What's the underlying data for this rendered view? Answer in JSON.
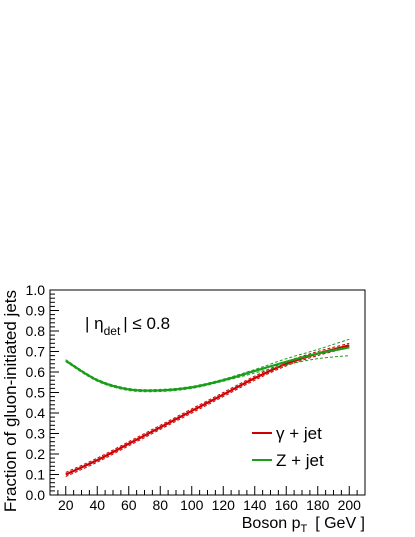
{
  "chart_data": {
    "type": "line",
    "title": "",
    "xlabel": "Boson p",
    "xlabel_sub": "T",
    "xlabel_unit": "[ GeV ]",
    "ylabel": "Fraction of gluon-initiated jets",
    "xlim": [
      10,
      210
    ],
    "ylim": [
      0,
      1.0
    ],
    "x_ticks": [
      20,
      40,
      60,
      80,
      100,
      120,
      140,
      160,
      180,
      200
    ],
    "y_ticks": [
      0.0,
      0.1,
      0.2,
      0.3,
      0.4,
      0.5,
      0.6,
      0.7,
      0.8,
      0.9,
      1.0
    ],
    "y_tick_labels": [
      "0.0",
      "0.1",
      "0.2",
      "0.3",
      "0.4",
      "0.5",
      "0.6",
      "0.7",
      "0.8",
      "0.9",
      "1.0"
    ],
    "grid": false,
    "annotation": {
      "prefix": "| η",
      "sub": "det",
      "suffix": "| ≤ 0.8"
    },
    "legend": {
      "placement": "bottom-right"
    },
    "series": [
      {
        "name": "γ + jet",
        "color": "#cc0000",
        "x": [
          20,
          40,
          60,
          80,
          100,
          120,
          140,
          160,
          180,
          200
        ],
        "y": [
          0.1,
          0.17,
          0.25,
          0.33,
          0.41,
          0.49,
          0.57,
          0.64,
          0.69,
          0.73
        ],
        "band_low": [
          0.09,
          0.16,
          0.24,
          0.32,
          0.4,
          0.48,
          0.56,
          0.63,
          0.68,
          0.72
        ],
        "band_high": [
          0.11,
          0.18,
          0.26,
          0.34,
          0.42,
          0.5,
          0.58,
          0.65,
          0.7,
          0.74
        ]
      },
      {
        "name": "Z + jet",
        "color": "#1a9e1a",
        "x": [
          20,
          40,
          60,
          80,
          100,
          120,
          140,
          160,
          180,
          200
        ],
        "y": [
          0.655,
          0.56,
          0.515,
          0.51,
          0.525,
          0.56,
          0.605,
          0.65,
          0.69,
          0.72
        ],
        "band_low": [
          0.65,
          0.555,
          0.51,
          0.505,
          0.52,
          0.555,
          0.595,
          0.635,
          0.665,
          0.68
        ],
        "band_high": [
          0.66,
          0.565,
          0.52,
          0.515,
          0.53,
          0.565,
          0.612,
          0.665,
          0.71,
          0.76
        ]
      }
    ]
  }
}
